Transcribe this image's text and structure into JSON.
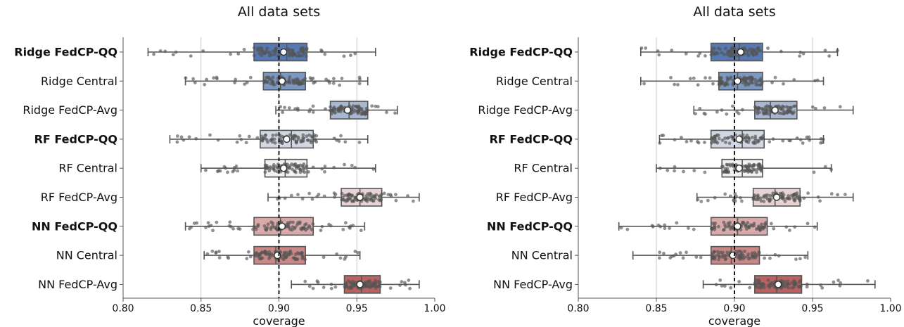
{
  "chart_data": [
    {
      "type": "box",
      "title": "All data sets",
      "xlabel": "coverage",
      "xlim": [
        0.8,
        1.0
      ],
      "xticks": [
        "0.80",
        "0.85",
        "0.90",
        "0.95",
        "1.00"
      ],
      "reference_line": 0.9,
      "grid": "vertical",
      "categories": [
        "Ridge FedCP-QQ",
        "Ridge Central",
        "Ridge FedCP-Avg",
        "RF FedCP-QQ",
        "RF Central",
        "RF FedCP-Avg",
        "NN FedCP-QQ",
        "NN Central",
        "NN FedCP-Avg"
      ],
      "bold_categories": [
        "Ridge FedCP-QQ",
        "RF FedCP-QQ",
        "NN FedCP-QQ"
      ],
      "boxes": [
        {
          "category": "Ridge FedCP-QQ",
          "whisker_low": 0.816,
          "q1": 0.884,
          "median": 0.905,
          "q3": 0.918,
          "whisker_high": 0.962,
          "mean": 0.903,
          "color": "#5579b0"
        },
        {
          "category": "Ridge Central",
          "whisker_low": 0.84,
          "q1": 0.89,
          "median": 0.901,
          "q3": 0.917,
          "whisker_high": 0.957,
          "mean": 0.902,
          "color": "#7c97c0"
        },
        {
          "category": "Ridge FedCP-Avg",
          "whisker_low": 0.898,
          "q1": 0.933,
          "median": 0.945,
          "q3": 0.957,
          "whisker_high": 0.976,
          "mean": 0.944,
          "color": "#a8b8d2"
        },
        {
          "category": "RF FedCP-QQ",
          "whisker_low": 0.83,
          "q1": 0.888,
          "median": 0.908,
          "q3": 0.922,
          "whisker_high": 0.957,
          "mean": 0.905,
          "color": "#d1d8e4"
        },
        {
          "category": "RF Central",
          "whisker_low": 0.85,
          "q1": 0.891,
          "median": 0.904,
          "q3": 0.918,
          "whisker_high": 0.962,
          "mean": 0.903,
          "color": "#f2f2f2"
        },
        {
          "category": "RF FedCP-Avg",
          "whisker_low": 0.893,
          "q1": 0.94,
          "median": 0.952,
          "q3": 0.966,
          "whisker_high": 0.99,
          "mean": 0.952,
          "color": "#e7d3d4"
        },
        {
          "category": "NN FedCP-QQ",
          "whisker_low": 0.84,
          "q1": 0.884,
          "median": 0.901,
          "q3": 0.922,
          "whisker_high": 0.955,
          "mean": 0.902,
          "color": "#d9aaaa"
        },
        {
          "category": "NN Central",
          "whisker_low": 0.852,
          "q1": 0.884,
          "median": 0.898,
          "q3": 0.917,
          "whisker_high": 0.952,
          "mean": 0.899,
          "color": "#c98786"
        },
        {
          "category": "NN FedCP-Avg",
          "whisker_low": 0.908,
          "q1": 0.942,
          "median": 0.953,
          "q3": 0.965,
          "whisker_high": 0.99,
          "mean": 0.952,
          "color": "#b9625f"
        }
      ]
    },
    {
      "type": "box",
      "title": "All data sets",
      "xlabel": "coverage",
      "xlim": [
        0.8,
        1.0
      ],
      "xticks": [
        "0.80",
        "0.85",
        "0.90",
        "0.95",
        "1.00"
      ],
      "reference_line": 0.9,
      "grid": "vertical",
      "categories": [
        "Ridge FedCP-QQ",
        "Ridge Central",
        "Ridge FedCP-Avg",
        "RF FedCP-QQ",
        "RF Central",
        "RF FedCP-Avg",
        "NN FedCP-QQ",
        "NN Central",
        "NN FedCP-Avg"
      ],
      "bold_categories": [
        "Ridge FedCP-QQ",
        "RF FedCP-QQ",
        "NN FedCP-QQ"
      ],
      "boxes": [
        {
          "category": "Ridge FedCP-QQ",
          "whisker_low": 0.84,
          "q1": 0.885,
          "median": 0.903,
          "q3": 0.918,
          "whisker_high": 0.966,
          "mean": 0.904,
          "color": "#5579b0"
        },
        {
          "category": "Ridge Central",
          "whisker_low": 0.84,
          "q1": 0.89,
          "median": 0.902,
          "q3": 0.918,
          "whisker_high": 0.957,
          "mean": 0.902,
          "color": "#7c97c0"
        },
        {
          "category": "Ridge FedCP-Avg",
          "whisker_low": 0.874,
          "q1": 0.913,
          "median": 0.923,
          "q3": 0.94,
          "whisker_high": 0.976,
          "mean": 0.926,
          "color": "#a8b8d2"
        },
        {
          "category": "RF FedCP-QQ",
          "whisker_low": 0.852,
          "q1": 0.885,
          "median": 0.905,
          "q3": 0.919,
          "whisker_high": 0.957,
          "mean": 0.903,
          "color": "#d1d8e4"
        },
        {
          "category": "RF Central",
          "whisker_low": 0.85,
          "q1": 0.892,
          "median": 0.905,
          "q3": 0.918,
          "whisker_high": 0.962,
          "mean": 0.903,
          "color": "#f2f2f2"
        },
        {
          "category": "RF FedCP-Avg",
          "whisker_low": 0.876,
          "q1": 0.912,
          "median": 0.926,
          "q3": 0.942,
          "whisker_high": 0.976,
          "mean": 0.927,
          "color": "#e7d3d4"
        },
        {
          "category": "NN FedCP-QQ",
          "whisker_low": 0.826,
          "q1": 0.885,
          "median": 0.902,
          "q3": 0.921,
          "whisker_high": 0.953,
          "mean": 0.902,
          "color": "#d9aaaa"
        },
        {
          "category": "NN Central",
          "whisker_low": 0.835,
          "q1": 0.885,
          "median": 0.898,
          "q3": 0.916,
          "whisker_high": 0.947,
          "mean": 0.899,
          "color": "#c98786"
        },
        {
          "category": "NN FedCP-Avg",
          "whisker_low": 0.88,
          "q1": 0.913,
          "median": 0.927,
          "q3": 0.943,
          "whisker_high": 0.99,
          "mean": 0.928,
          "color": "#b9625f"
        }
      ]
    }
  ]
}
